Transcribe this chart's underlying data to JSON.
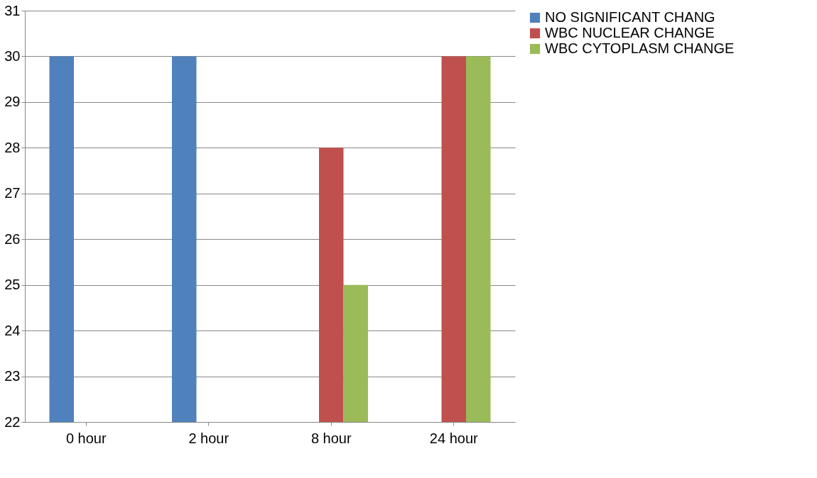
{
  "chart_data": {
    "type": "bar",
    "categories": [
      "0 hour",
      "2 hour",
      "8 hour",
      "24 hour"
    ],
    "series": [
      {
        "name": "NO SIGNIFICANT CHANG",
        "color": "#4f81bd",
        "values": [
          30,
          30,
          null,
          null
        ]
      },
      {
        "name": "WBC NUCLEAR CHANGE",
        "color": "#c0504d",
        "values": [
          null,
          null,
          28,
          30
        ]
      },
      {
        "name": "WBC   CYTOPLASM CHANGE",
        "color": "#9bbb59",
        "values": [
          null,
          null,
          25,
          30
        ]
      }
    ],
    "ylim": [
      22,
      31
    ],
    "yticks": [
      22,
      23,
      24,
      25,
      26,
      27,
      28,
      29,
      30,
      31
    ],
    "grid": "y",
    "legend": "right"
  }
}
